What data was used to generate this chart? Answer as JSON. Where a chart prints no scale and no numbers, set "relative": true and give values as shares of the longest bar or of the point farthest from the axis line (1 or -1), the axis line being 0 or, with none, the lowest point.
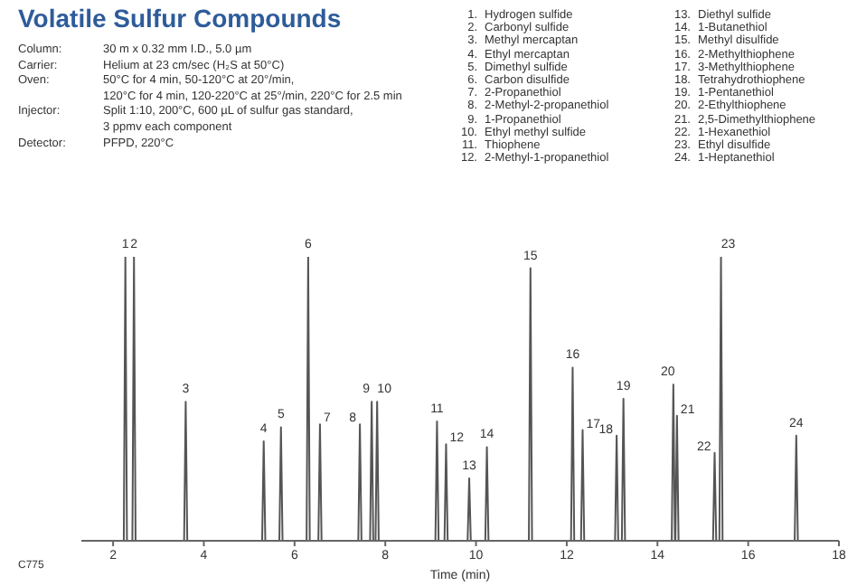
{
  "chart_data": {
    "type": "line",
    "title": "Volatile Sulfur Compounds",
    "subtitle": "Column:\t30 m x 0.32 mm I.D.,  5.0 µm\nCarrier:\tHelium at 23 cm/sec (H₂S at 50°C)\nOven:\t50°C for 4 min, 50-120°C at 20°/min,\n\t120°C for 4 min, 120-220°C at 25°/min, 220°C for 2.5 min\nInjector:\tSplit 1:10, 200°C, 600 µL of sulfur gas standard,\n\t3 ppmv each component\nDetector:\tPFPD, 220°C",
    "xlabel": "Time (min)",
    "relative": true,
    "xlim": [
      1.3,
      18
    ],
    "xticks": [
      2,
      4,
      6,
      8,
      10,
      12,
      14,
      16,
      18
    ],
    "x": [
      1.3,
      2.235,
      2.27,
      2.305,
      2.425,
      2.46,
      2.495,
      3.565,
      3.6,
      3.635,
      5.285,
      5.32,
      5.355,
      5.665,
      5.7,
      5.735,
      6.265,
      6.3,
      6.335,
      6.525,
      6.56,
      6.595,
      7.405,
      7.44,
      7.475,
      7.665,
      7.7,
      7.735,
      7.785,
      7.82,
      7.855,
      9.105,
      9.14,
      9.175,
      9.305,
      9.34,
      9.375,
      9.815,
      9.85,
      9.885,
      10.205,
      10.24,
      10.275,
      11.165,
      11.2,
      11.235,
      12.095,
      12.13,
      12.165,
      12.315,
      12.35,
      12.385,
      13.065,
      13.1,
      13.135,
      13.215,
      13.25,
      13.285,
      14.315,
      14.35,
      14.385,
      14.395,
      14.43,
      14.465,
      15.225,
      15.26,
      15.295,
      15.365,
      15.4,
      15.435,
      17.025,
      17.06,
      17.095,
      18
    ],
    "series": [
      {
        "color": "#555555",
        "values": [
          0,
          0,
          1.0,
          0,
          0,
          1.0,
          0,
          0,
          0.49,
          0,
          0,
          0.35,
          0,
          0,
          0.4,
          0,
          0,
          1.0,
          0,
          0,
          0.41,
          0,
          0,
          0.41,
          0,
          0,
          0.49,
          0,
          0,
          0.49,
          0,
          0,
          0.42,
          0,
          0,
          0.34,
          0,
          0,
          0.22,
          0,
          0,
          0.33,
          0,
          0,
          0.96,
          0,
          0,
          0.61,
          0,
          0,
          0.39,
          0,
          0,
          0.37,
          0,
          0,
          0.5,
          0,
          0,
          0.55,
          0,
          0,
          0.44,
          0,
          0,
          0.31,
          0,
          0,
          1.0,
          0,
          0,
          0.37,
          0,
          0
        ]
      }
    ],
    "annotations": [
      "1. Hydrogen sulfide",
      "2. Carbonyl sulfide",
      "3. Methyl mercaptan",
      "4. Ethyl mercaptan",
      "5. Dimethyl sulfide",
      "6. Carbon disulfide",
      "7. 2-Propanethiol",
      "8. 2-Methyl-2-propanethiol",
      "9. 1-Propanethiol",
      "10. Ethyl methyl sulfide",
      "11. Thiophene",
      "12. 2-Methyl-1-propanethiol",
      "13. Diethyl sulfide",
      "14. 1-Butanethiol",
      "15. Methyl disulfide",
      "16. 2-Methylthiophene",
      "17. 3-Methylthiophene",
      "18. Tetrahydrothiophene",
      "19. 1-Pentanethiol",
      "20. 2-Ethylthiophene",
      "21. 2,5-Dimethylthiophene",
      "22. 1-Hexanethiol",
      "23. Ethyl disulfide",
      "24. 1-Heptanethiol",
      "C775",
      {
        "text": "1",
        "x": 2.27,
        "y": 1.0
      },
      {
        "text": "2",
        "x": 2.46,
        "y": 1.0
      },
      {
        "text": "3",
        "x": 3.6,
        "y": 0.49
      },
      {
        "text": "4",
        "x": 5.32,
        "y": 0.35
      },
      {
        "text": "5",
        "x": 5.7,
        "y": 0.4
      },
      {
        "text": "6",
        "x": 6.3,
        "y": 1.0
      },
      {
        "text": "7",
        "x": 6.56,
        "y": 0.41
      },
      {
        "text": "8",
        "x": 7.44,
        "y": 0.41
      },
      {
        "text": "9",
        "x": 7.7,
        "y": 0.49
      },
      {
        "text": "10",
        "x": 7.82,
        "y": 0.49
      },
      {
        "text": "11",
        "x": 9.14,
        "y": 0.42
      },
      {
        "text": "12",
        "x": 9.34,
        "y": 0.34
      },
      {
        "text": "13",
        "x": 9.85,
        "y": 0.22
      },
      {
        "text": "14",
        "x": 10.24,
        "y": 0.33
      },
      {
        "text": "15",
        "x": 11.2,
        "y": 0.96
      },
      {
        "text": "16",
        "x": 12.13,
        "y": 0.61
      },
      {
        "text": "17",
        "x": 12.35,
        "y": 0.39
      },
      {
        "text": "18",
        "x": 13.1,
        "y": 0.37
      },
      {
        "text": "19",
        "x": 13.25,
        "y": 0.5
      },
      {
        "text": "20",
        "x": 14.35,
        "y": 0.55
      },
      {
        "text": "21",
        "x": 14.43,
        "y": 0.44
      },
      {
        "text": "22",
        "x": 15.26,
        "y": 0.31
      },
      {
        "text": "23",
        "x": 15.4,
        "y": 1.0
      },
      {
        "text": "24",
        "x": 17.06,
        "y": 0.37
      }
    ]
  }
}
